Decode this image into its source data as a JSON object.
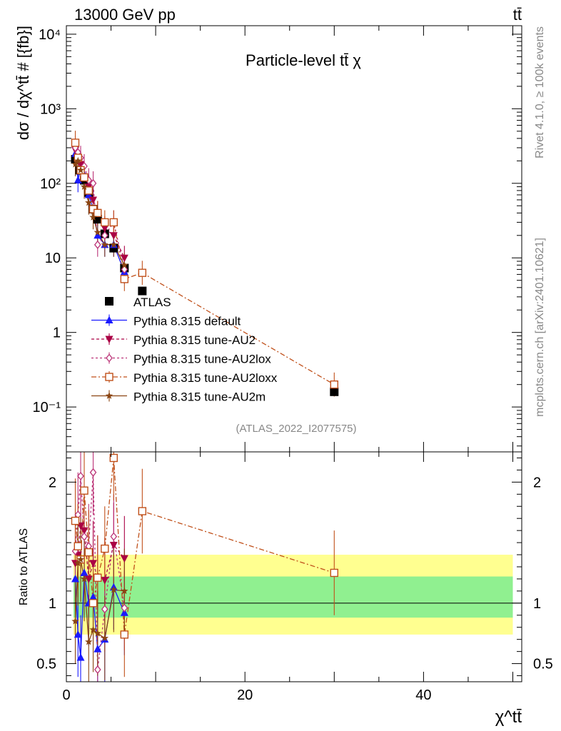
{
  "header": {
    "energy_label": "13000 GeV pp",
    "process_label": "tt̄"
  },
  "side_labels": {
    "rivet": "Rivet 4.1.0, ≥ 100k events",
    "mcplots": "mcplots.cern.ch [arXiv:2401.10621]"
  },
  "colors": {
    "atlas": "#000000",
    "default": "#1a1aff",
    "au2": "#aa0044",
    "au2lox": "#bb3377",
    "au2loxx": "#c0501a",
    "au2m": "#8b4513",
    "band_inner": "#90f090",
    "band_outer": "#ffff90"
  },
  "chart_data": [
    {
      "type": "scatter",
      "title": "Particle-level tt̄ χ",
      "analysis_tag": "(ATLAS_2022_I2077575)",
      "ylabel": "dσ / dχ^tt̄ # [{fb}]",
      "xlabel": "χ^tt̄",
      "yscale": "log",
      "xlim": [
        0,
        51
      ],
      "ylim": [
        0.025,
        13000
      ],
      "y_ticks": [
        {
          "value": 10000,
          "label": "10⁴"
        },
        {
          "value": 1000,
          "label": "10³"
        },
        {
          "value": 100,
          "label": "10²"
        },
        {
          "value": 10,
          "label": "10"
        },
        {
          "value": 1,
          "label": "1"
        },
        {
          "value": 0.1,
          "label": "10⁻¹"
        }
      ],
      "legend_position": "lower-left",
      "series": [
        {
          "key": "atlas",
          "name": "ATLAS",
          "marker": "square-filled",
          "x": [
            1.0,
            1.5,
            2.0,
            2.5,
            3.0,
            3.5,
            4.3,
            5.3,
            6.5,
            8.5,
            30.0
          ],
          "y": [
            210,
            150,
            110,
            75,
            45,
            33,
            21,
            13.5,
            7.3,
            3.6,
            0.16
          ]
        },
        {
          "key": "default",
          "name": "Pythia 8.315 default",
          "marker": "triangle-up",
          "x": [
            1.0,
            1.3,
            1.6,
            2.0,
            2.5,
            3.0,
            3.5,
            4.3,
            5.3,
            6.5
          ],
          "y": [
            250,
            110,
            160,
            130,
            70,
            45,
            20,
            15,
            15,
            6.5
          ]
        },
        {
          "key": "au2",
          "name": "Pythia 8.315 tune-AU2",
          "marker": "triangle-down",
          "x": [
            1.0,
            1.3,
            1.6,
            2.0,
            2.5,
            3.0,
            3.5,
            4.3,
            5.3,
            6.5
          ],
          "y": [
            280,
            210,
            180,
            120,
            90,
            60,
            40,
            25,
            20,
            10
          ]
        },
        {
          "key": "au2lox",
          "name": "Pythia 8.315 tune-AU2lox",
          "marker": "diamond-open",
          "x": [
            1.0,
            1.3,
            1.6,
            2.0,
            2.5,
            3.0,
            3.5,
            4.3,
            5.3,
            6.5
          ],
          "y": [
            300,
            260,
            220,
            170,
            110,
            100,
            15,
            20,
            30,
            7
          ]
        },
        {
          "key": "au2loxx",
          "name": "Pythia 8.315 tune-AU2loxx",
          "marker": "square-open",
          "x": [
            1.0,
            1.3,
            1.6,
            2.0,
            2.5,
            3.0,
            3.5,
            4.3,
            5.3,
            6.5,
            8.5,
            30.0
          ],
          "y": [
            350,
            220,
            150,
            120,
            80,
            45,
            40,
            30,
            30,
            5.2,
            6.3,
            0.2
          ]
        },
        {
          "key": "au2m",
          "name": "Pythia 8.315 tune-AU2m",
          "marker": "star",
          "x": [
            1.0,
            1.3,
            1.6,
            2.0,
            2.5,
            3.0,
            3.5,
            4.3,
            5.3,
            6.5
          ],
          "y": [
            180,
            200,
            150,
            90,
            55,
            35,
            22,
            15,
            15,
            8
          ]
        }
      ]
    },
    {
      "type": "scatter",
      "title": "",
      "ylabel": "Ratio to ATLAS",
      "xlabel": "χ^tt̄",
      "xlim": [
        0,
        51
      ],
      "ylim": [
        0.35,
        2.25
      ],
      "y_ticks": [
        {
          "value": 0.5,
          "label": "0.5"
        },
        {
          "value": 1,
          "label": "1"
        },
        {
          "value": 2,
          "label": "2"
        }
      ],
      "x_ticks": [
        {
          "value": 0,
          "label": "0"
        },
        {
          "value": 20,
          "label": "20"
        },
        {
          "value": 40,
          "label": "40"
        }
      ],
      "bands": [
        {
          "name": "inner",
          "x_from": 0.8,
          "x_to": 50,
          "low": 0.88,
          "high": 1.22
        },
        {
          "name": "outer",
          "x_from": 0.8,
          "x_to": 50,
          "low": 0.74,
          "high": 1.4
        }
      ],
      "series": [
        {
          "key": "default",
          "x": [
            1.0,
            1.3,
            1.6,
            2.0,
            2.5,
            3.0,
            3.5,
            4.3,
            5.3,
            6.5
          ],
          "y": [
            1.2,
            0.74,
            0.55,
            1.25,
            1.0,
            1.05,
            0.62,
            0.7,
            1.13,
            0.92
          ]
        },
        {
          "key": "au2",
          "x": [
            1.0,
            1.3,
            1.6,
            2.0,
            2.5,
            3.0,
            3.5,
            4.3,
            5.3,
            6.5
          ],
          "y": [
            1.33,
            1.4,
            1.64,
            1.6,
            1.2,
            1.33,
            1.21,
            1.19,
            1.48,
            1.37
          ]
        },
        {
          "key": "au2lox",
          "x": [
            1.0,
            1.3,
            1.6,
            2.0,
            2.5,
            3.0,
            3.5,
            4.3,
            5.3,
            6.5
          ],
          "y": [
            1.43,
            1.73,
            2.05,
            1.55,
            1.47,
            2.08,
            0.45,
            0.95,
            1.55,
            0.96
          ]
        },
        {
          "key": "au2loxx",
          "x": [
            1.0,
            1.3,
            1.6,
            2.0,
            2.5,
            3.0,
            3.5,
            4.3,
            5.3,
            6.5,
            8.5,
            30.0
          ],
          "y": [
            1.68,
            1.47,
            1.36,
            1.93,
            1.42,
            1.0,
            1.21,
            1.45,
            2.2,
            0.74,
            1.76,
            1.25
          ]
        },
        {
          "key": "au2m",
          "x": [
            1.0,
            1.3,
            1.6,
            2.0,
            2.5,
            3.0,
            3.5,
            4.3,
            5.3,
            6.5
          ],
          "y": [
            0.85,
            1.33,
            1.36,
            1.2,
            0.68,
            0.78,
            0.75,
            0.71,
            1.11,
            1.1
          ]
        }
      ]
    }
  ]
}
